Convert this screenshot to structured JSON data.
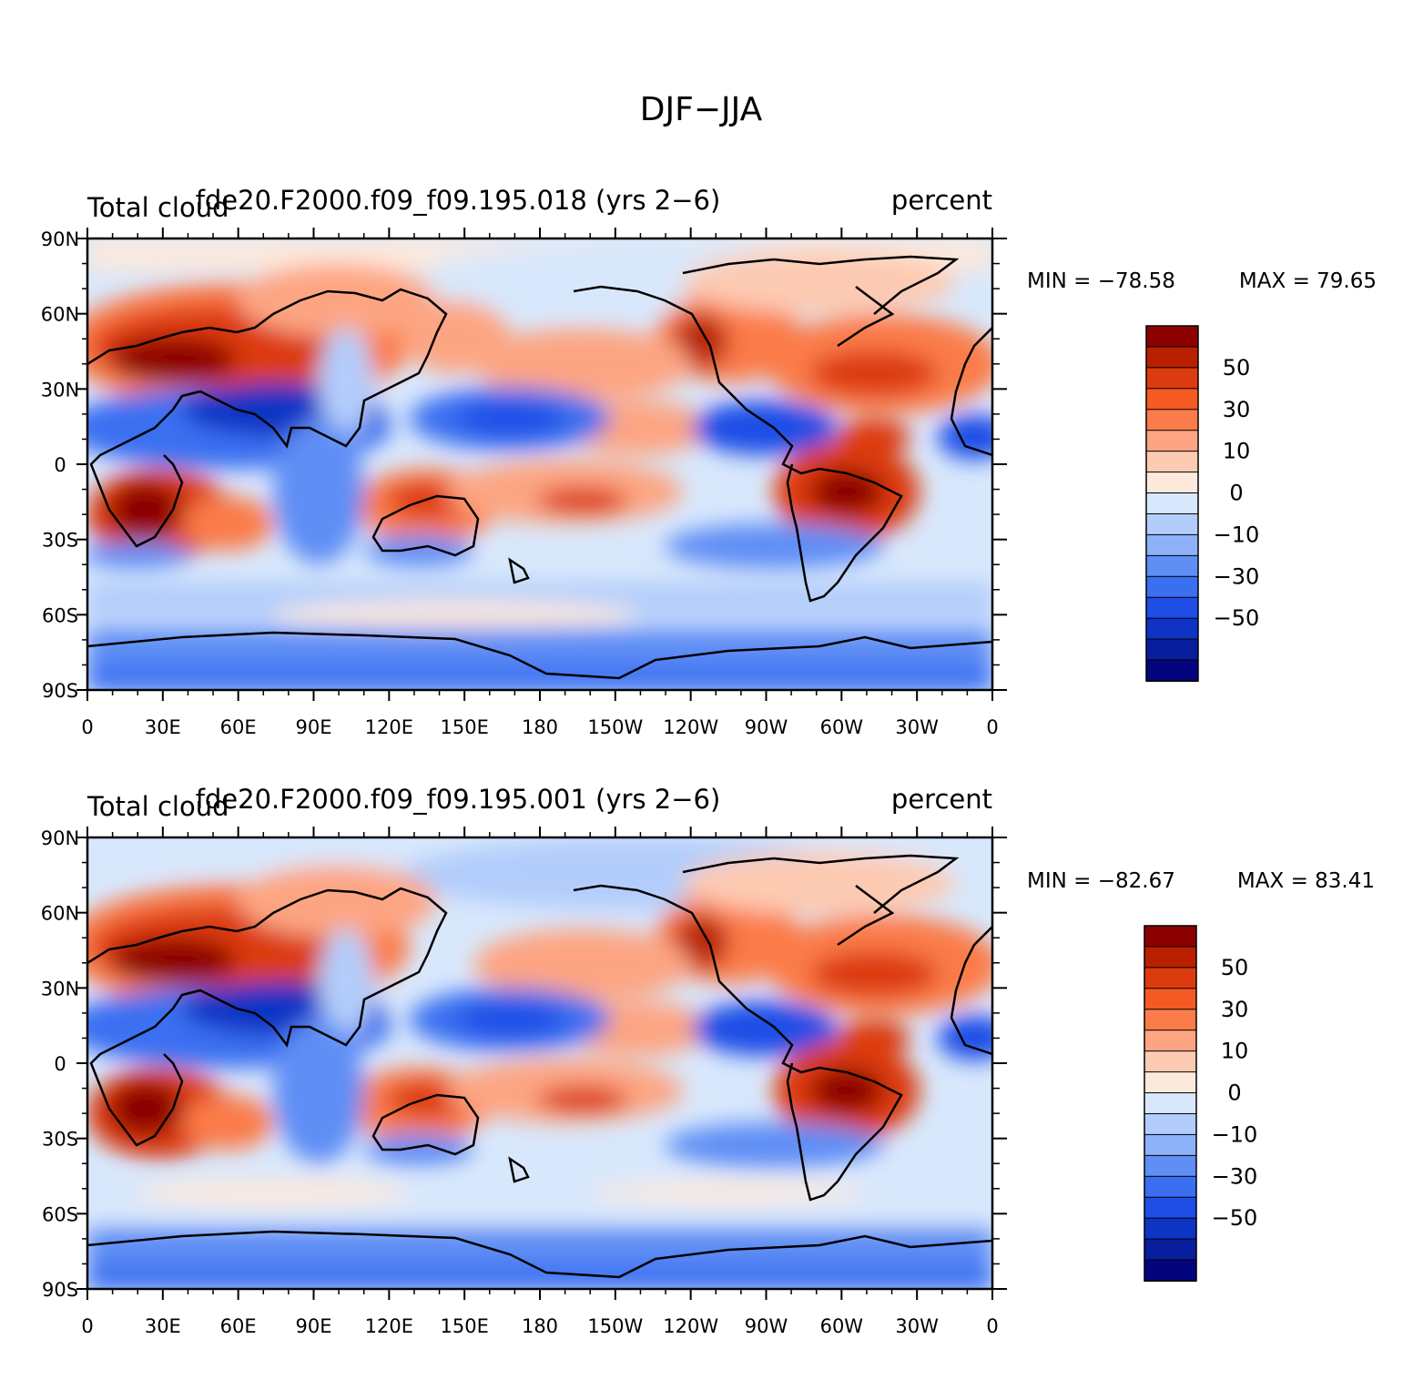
{
  "figure": {
    "title": "DJF−JJA"
  },
  "axes": {
    "lon_ticks": [
      "0",
      "30E",
      "60E",
      "90E",
      "120E",
      "150E",
      "180",
      "150W",
      "120W",
      "90W",
      "60W",
      "30W",
      "0"
    ],
    "lat_ticks": [
      "90N",
      "60N",
      "30N",
      "0",
      "30S",
      "60S",
      "90S"
    ]
  },
  "colorbar": {
    "labels": [
      "50",
      "30",
      "10",
      "0",
      "−10",
      "−30",
      "−50"
    ],
    "colors": [
      "#8c0000",
      "#b82000",
      "#dc3b10",
      "#f55a24",
      "#fb7c4a",
      "#fda582",
      "#fdcab2",
      "#fde9dc",
      "#d8e8fc",
      "#b2cdfb",
      "#8db2fa",
      "#5f8ef5",
      "#3a6ff1",
      "#1f4ee6",
      "#0e34c4",
      "#091e9c",
      "#04047e"
    ]
  },
  "panels": [
    {
      "variable": "Total cloud",
      "case": "fde20.F2000.f09_f09.195.018 (yrs 2−6)",
      "units": "percent",
      "min_label": "MIN = −78.58",
      "max_label": "MAX =   79.65"
    },
    {
      "variable": "Total cloud",
      "case": "fde20.F2000.f09_f09.195.001 (yrs 2−6)",
      "units": "percent",
      "min_label": "MIN = −82.67",
      "max_label": "MAX =   83.41"
    }
  ],
  "chart_data": {
    "type": "heatmap",
    "projection": "cylindrical-equidistant",
    "lon_range": [
      0,
      360
    ],
    "lat_range": [
      -90,
      90
    ],
    "contour_levels": [
      -70,
      -60,
      -50,
      -40,
      -30,
      -20,
      -10,
      -5,
      0,
      5,
      10,
      20,
      30,
      40,
      50,
      60,
      70
    ],
    "colorbar_tick_values": [
      50,
      30,
      10,
      0,
      -10,
      -30,
      -50
    ],
    "series": [
      {
        "name": "fde20.F2000.f09_f09.195.018 (yrs 2−6)",
        "min": -78.58,
        "max": 79.65
      },
      {
        "name": "fde20.F2000.f09_f09.195.001 (yrs 2−6)",
        "min": -82.67,
        "max": 83.41
      }
    ]
  }
}
